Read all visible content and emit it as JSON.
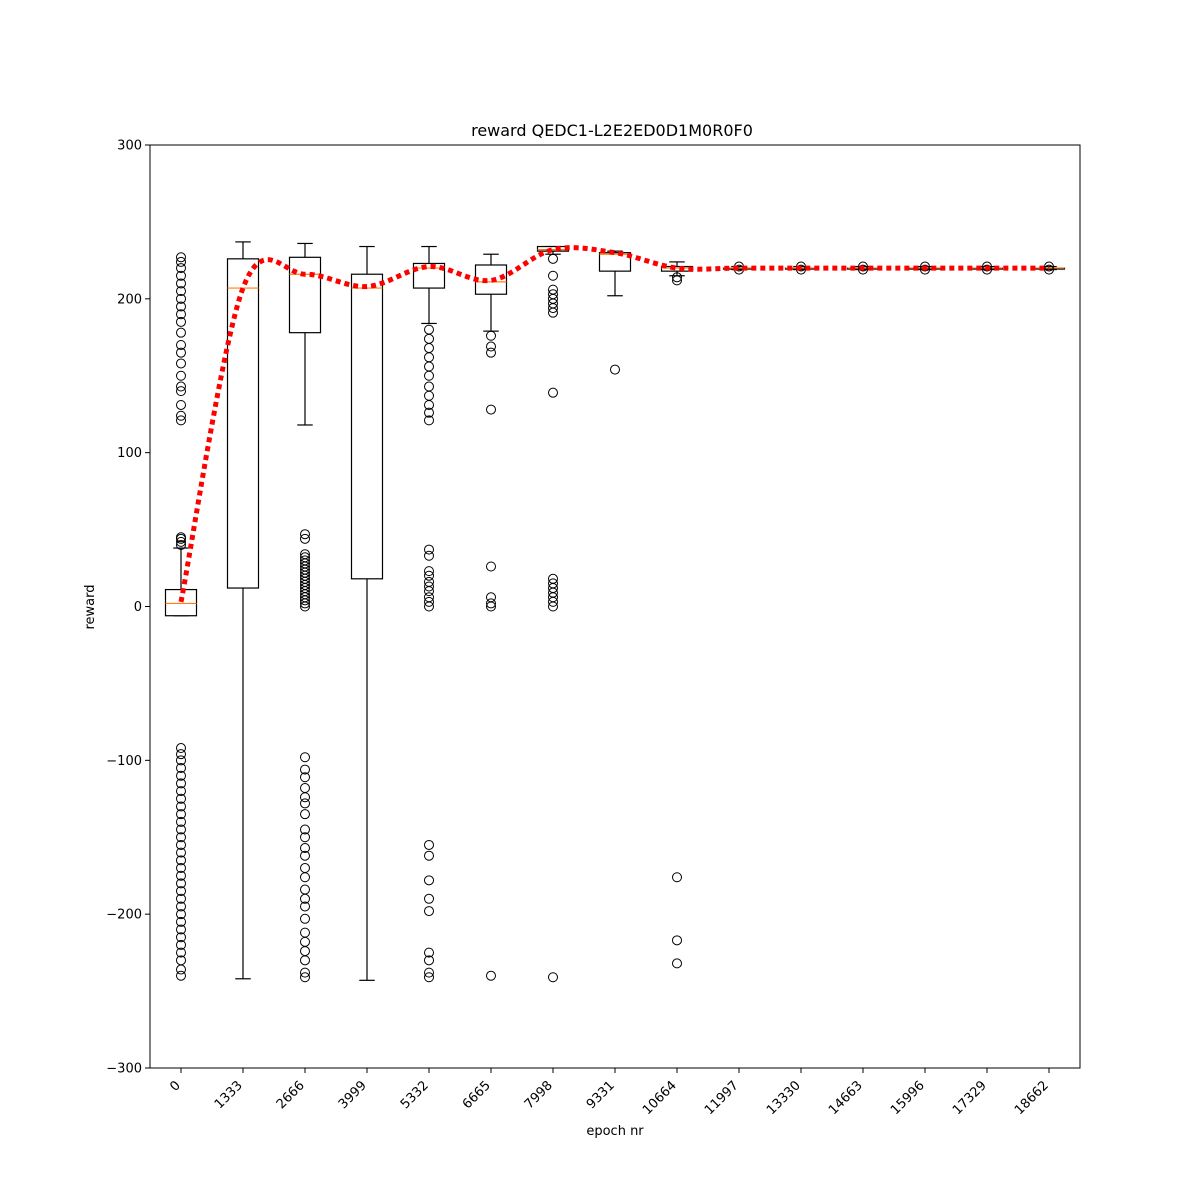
{
  "chart_data": {
    "type": "box",
    "title": "reward QEDC1-L2E2ED0D1M0R0F0",
    "xlabel": "epoch nr",
    "ylabel": "reward",
    "ylim": [
      -300,
      300
    ],
    "yticks": [
      -300,
      -200,
      -100,
      0,
      100,
      200,
      300
    ],
    "ytick_labels": [
      "−300",
      "−200",
      "−100",
      "0",
      "100",
      "200",
      "300"
    ],
    "categories": [
      "0",
      "1333",
      "2666",
      "3999",
      "5332",
      "6665",
      "7998",
      "9331",
      "10664",
      "11997",
      "13330",
      "14663",
      "15996",
      "17329",
      "18662"
    ],
    "boxes": [
      {
        "whisker_low": -6,
        "q1": -6,
        "median": 2,
        "q3": 11,
        "whisker_high": 38,
        "outliers": [
          40,
          42,
          44,
          45,
          121,
          124,
          131,
          140,
          143,
          150,
          158,
          165,
          170,
          178,
          185,
          190,
          195,
          200,
          205,
          210,
          215,
          220,
          224,
          227,
          -92,
          -96,
          -100,
          -105,
          -110,
          -115,
          -120,
          -125,
          -130,
          -135,
          -140,
          -145,
          -150,
          -155,
          -160,
          -165,
          -170,
          -175,
          -180,
          -185,
          -190,
          -195,
          -200,
          -205,
          -210,
          -215,
          -220,
          -225,
          -230,
          -236,
          -240
        ]
      },
      {
        "whisker_low": -242,
        "q1": 12,
        "median": 207,
        "q3": 226,
        "whisker_high": 237,
        "outliers": []
      },
      {
        "whisker_low": 118,
        "q1": 178,
        "median": 216,
        "q3": 227,
        "whisker_high": 236,
        "outliers": [
          0,
          2,
          4,
          6,
          8,
          10,
          12,
          14,
          16,
          18,
          20,
          22,
          24,
          26,
          28,
          30,
          32,
          34,
          44,
          47,
          -98,
          -106,
          -111,
          -118,
          -124,
          -128,
          -135,
          -145,
          -150,
          -157,
          -162,
          -170,
          -176,
          -184,
          -190,
          -195,
          -203,
          -212,
          -218,
          -224,
          -230,
          -238,
          -241
        ]
      },
      {
        "whisker_low": -243,
        "q1": 18,
        "median": 207,
        "q3": 216,
        "whisker_high": 234,
        "outliers": []
      },
      {
        "whisker_low": 184,
        "q1": 207,
        "median": 220,
        "q3": 223,
        "whisker_high": 234,
        "outliers": [
          0,
          3,
          6,
          10,
          13,
          16,
          20,
          23,
          33,
          37,
          121,
          126,
          131,
          137,
          143,
          150,
          156,
          162,
          168,
          174,
          180,
          -155,
          -162,
          -178,
          -190,
          -198,
          -225,
          -230,
          -238,
          -241
        ]
      },
      {
        "whisker_low": 179,
        "q1": 203,
        "median": 211,
        "q3": 222,
        "whisker_high": 229,
        "outliers": [
          0,
          2,
          6,
          26,
          128,
          165,
          169,
          176,
          -240
        ]
      },
      {
        "whisker_low": 229,
        "q1": 231,
        "median": 232,
        "q3": 234,
        "whisker_high": 234,
        "outliers": [
          0,
          3,
          6,
          9,
          12,
          15,
          18,
          139,
          191,
          194,
          197,
          200,
          203,
          206,
          215,
          226,
          -241
        ]
      },
      {
        "whisker_low": 202,
        "q1": 218,
        "median": 229,
        "q3": 230,
        "whisker_high": 231,
        "outliers": [
          154
        ]
      },
      {
        "whisker_low": 215,
        "q1": 218,
        "median": 220,
        "q3": 221,
        "whisker_high": 224,
        "outliers": [
          212,
          214,
          -176,
          -217,
          -232
        ]
      },
      {
        "whisker_low": 219,
        "q1": 220,
        "median": 220,
        "q3": 220,
        "whisker_high": 221,
        "outliers": [
          219,
          221
        ]
      },
      {
        "whisker_low": 219,
        "q1": 220,
        "median": 220,
        "q3": 220,
        "whisker_high": 221,
        "outliers": [
          219,
          221
        ]
      },
      {
        "whisker_low": 219,
        "q1": 220,
        "median": 220,
        "q3": 220,
        "whisker_high": 221,
        "outliers": [
          219,
          221
        ]
      },
      {
        "whisker_low": 219,
        "q1": 220,
        "median": 220,
        "q3": 220,
        "whisker_high": 221,
        "outliers": [
          219,
          221
        ]
      },
      {
        "whisker_low": 219,
        "q1": 220,
        "median": 220,
        "q3": 220,
        "whisker_high": 221,
        "outliers": [
          219,
          221
        ]
      },
      {
        "whisker_low": 219,
        "q1": 220,
        "median": 220,
        "q3": 220,
        "whisker_high": 221,
        "outliers": [
          219,
          221
        ]
      }
    ],
    "mean_line": {
      "style": "dotted",
      "color": "#ff0000",
      "values": [
        3,
        207,
        216,
        208,
        221,
        212,
        232,
        230,
        220,
        220,
        220,
        220,
        220,
        220,
        220
      ]
    },
    "median_color": "#ff7f0e",
    "box_color": "#000000",
    "grid": false,
    "legend": "none"
  }
}
